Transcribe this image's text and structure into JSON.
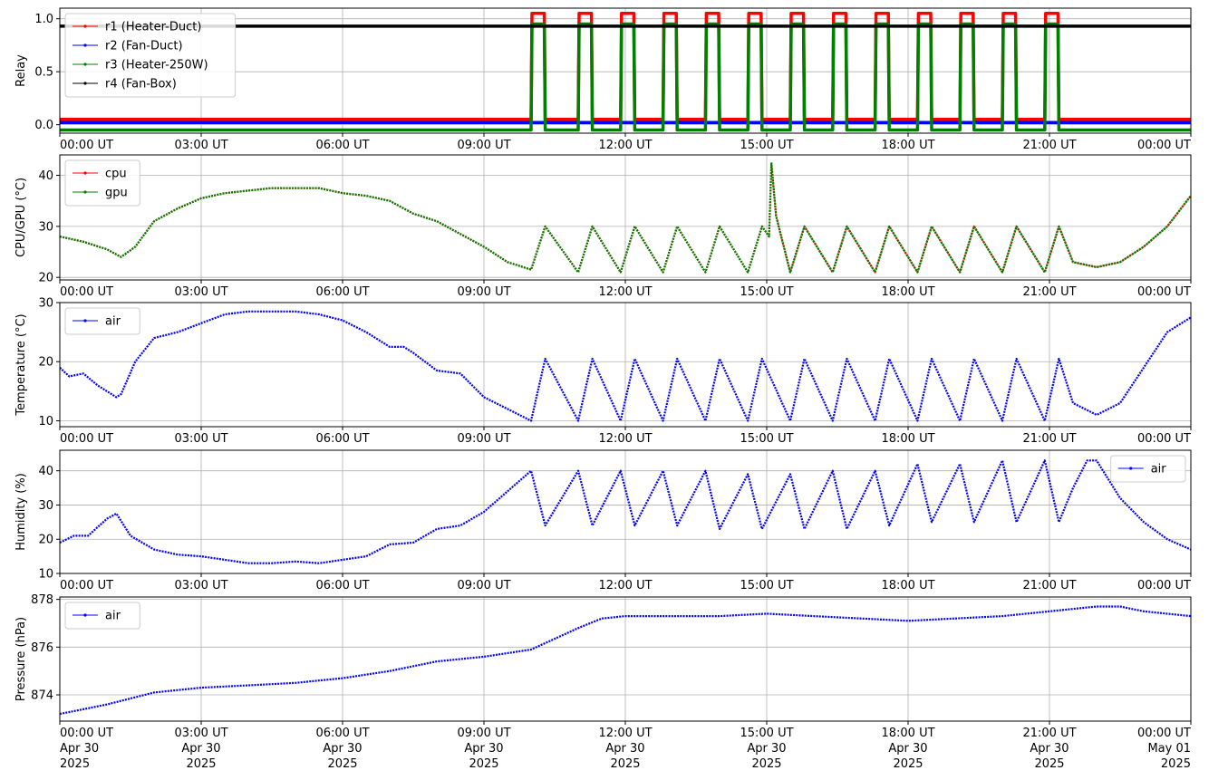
{
  "chart_data": [
    {
      "type": "line",
      "ylabel": "Relay",
      "ylim": [
        -0.08,
        1.1
      ],
      "yticks": [
        "0.0",
        "0.5",
        "1.0"
      ],
      "ytick_values": [
        0,
        0.5,
        1.0
      ],
      "legend_position": "upper-left",
      "grid": true,
      "x_tick_labels": [
        "00:00 UT",
        "03:00 UT",
        "06:00 UT",
        "09:00 UT",
        "12:00 UT",
        "15:00 UT",
        "18:00 UT",
        "21:00 UT",
        "00:00 UT"
      ],
      "series": [
        {
          "name": "r1 (Heater-Duct)",
          "color": "#ff0000",
          "off": 0.05,
          "on": 1.05,
          "on_intervals": [
            [
              10.0,
              10.3
            ],
            [
              11.0,
              11.3
            ],
            [
              11.9,
              12.2
            ],
            [
              12.8,
              13.1
            ],
            [
              13.7,
              14.0
            ],
            [
              14.6,
              14.9
            ],
            [
              15.5,
              15.8
            ],
            [
              16.4,
              16.7
            ],
            [
              17.3,
              17.6
            ],
            [
              18.2,
              18.5
            ],
            [
              19.1,
              19.4
            ],
            [
              20.0,
              20.3
            ],
            [
              20.9,
              21.2
            ]
          ]
        },
        {
          "name": "r2 (Fan-Duct)",
          "color": "#0000ff",
          "off": 0.02,
          "on": 0.02,
          "on_intervals": []
        },
        {
          "name": "r3 (Heater-250W)",
          "color": "#008000",
          "off": -0.05,
          "on": 0.95,
          "on_intervals": [
            [
              10.0,
              10.3
            ],
            [
              11.0,
              11.3
            ],
            [
              11.9,
              12.2
            ],
            [
              12.8,
              13.1
            ],
            [
              13.7,
              14.0
            ],
            [
              14.6,
              14.9
            ],
            [
              15.5,
              15.8
            ],
            [
              16.4,
              16.7
            ],
            [
              17.3,
              17.6
            ],
            [
              18.2,
              18.5
            ],
            [
              19.1,
              19.4
            ],
            [
              20.0,
              20.3
            ],
            [
              20.9,
              21.2
            ]
          ]
        },
        {
          "name": "r4 (Fan-Box)",
          "color": "#000000",
          "off": 0.93,
          "on": 0.93,
          "on_intervals": []
        }
      ]
    },
    {
      "type": "line",
      "ylabel": "CPU/GPU (°C)",
      "ylim": [
        19.5,
        44
      ],
      "yticks": [
        "20",
        "30",
        "40"
      ],
      "ytick_values": [
        20,
        30,
        40
      ],
      "legend_position": "upper-left",
      "grid": true,
      "x_tick_labels": [
        "00:00 UT",
        "03:00 UT",
        "06:00 UT",
        "09:00 UT",
        "12:00 UT",
        "15:00 UT",
        "18:00 UT",
        "21:00 UT",
        "00:00 UT"
      ],
      "series": [
        {
          "name": "cpu",
          "color": "#ff0000",
          "x": [
            0,
            0.5,
            1.0,
            1.3,
            1.6,
            2.0,
            2.5,
            3.0,
            3.5,
            4.0,
            4.5,
            5.0,
            5.5,
            6.0,
            6.5,
            7.0,
            7.5,
            8.0,
            8.5,
            9.0,
            9.5,
            10.0,
            10.3,
            11.0,
            11.3,
            11.9,
            12.2,
            12.8,
            13.1,
            13.7,
            14.0,
            14.6,
            14.9,
            15.05,
            15.1,
            15.2,
            15.5,
            15.8,
            16.4,
            16.7,
            17.3,
            17.6,
            18.2,
            18.5,
            19.1,
            19.4,
            20.0,
            20.3,
            20.9,
            21.2,
            21.5,
            22.0,
            22.5,
            23.0,
            23.5,
            24.0
          ],
          "y": [
            28,
            27,
            25.5,
            24,
            26,
            31,
            33.5,
            35.5,
            36.5,
            37,
            37.5,
            37.5,
            37.5,
            36.5,
            36,
            35,
            32.5,
            31,
            28.5,
            26,
            23,
            21.5,
            30,
            21,
            30,
            21,
            30,
            21,
            30,
            21,
            30,
            21,
            30,
            28,
            42,
            32,
            21,
            30,
            21,
            30,
            21,
            30,
            21,
            30,
            21,
            30,
            21,
            30,
            21,
            30,
            23,
            22,
            23,
            26,
            30,
            36
          ]
        },
        {
          "name": "gpu",
          "color": "#008000",
          "x": [
            0,
            0.5,
            1.0,
            1.3,
            1.6,
            2.0,
            2.5,
            3.0,
            3.5,
            4.0,
            4.5,
            5.0,
            5.5,
            6.0,
            6.5,
            7.0,
            7.5,
            8.0,
            8.5,
            9.0,
            9.5,
            10.0,
            10.3,
            11.0,
            11.3,
            11.9,
            12.2,
            12.8,
            13.1,
            13.7,
            14.0,
            14.6,
            14.9,
            15.05,
            15.1,
            15.2,
            15.5,
            15.8,
            16.4,
            16.7,
            17.3,
            17.6,
            18.2,
            18.5,
            19.1,
            19.4,
            20.0,
            20.3,
            20.9,
            21.2,
            21.5,
            22.0,
            22.5,
            23.0,
            23.5,
            24.0
          ],
          "y": [
            28,
            27,
            25.5,
            24,
            26,
            31,
            33.5,
            35.5,
            36.5,
            37,
            37.5,
            37.5,
            37.5,
            36.5,
            36,
            35,
            32.5,
            31,
            28.5,
            26,
            23,
            21.5,
            30,
            21,
            30,
            21,
            30,
            21,
            30,
            21,
            30,
            21,
            30,
            28,
            42.5,
            32,
            21,
            30,
            21,
            30,
            21,
            30,
            21,
            30,
            21,
            30,
            21,
            30,
            21,
            30,
            23,
            22,
            23,
            26,
            30,
            36
          ]
        }
      ]
    },
    {
      "type": "line",
      "ylabel": "Temperature (°C)",
      "ylim": [
        9,
        30
      ],
      "yticks": [
        "10",
        "20",
        "30"
      ],
      "ytick_values": [
        10,
        20,
        30
      ],
      "legend_position": "upper-left",
      "grid": true,
      "x_tick_labels": [
        "00:00 UT",
        "03:00 UT",
        "06:00 UT",
        "09:00 UT",
        "12:00 UT",
        "15:00 UT",
        "18:00 UT",
        "21:00 UT",
        "00:00 UT"
      ],
      "series": [
        {
          "name": "air",
          "color": "#0000ff",
          "x": [
            0,
            0.2,
            0.5,
            0.8,
            1.0,
            1.2,
            1.3,
            1.6,
            2.0,
            2.5,
            3.0,
            3.5,
            4.0,
            4.5,
            5.0,
            5.5,
            6.0,
            6.5,
            7.0,
            7.3,
            7.5,
            8.0,
            8.5,
            9.0,
            9.5,
            10.0,
            10.3,
            11.0,
            11.3,
            11.9,
            12.2,
            12.8,
            13.1,
            13.7,
            14.0,
            14.6,
            14.9,
            15.5,
            15.8,
            16.4,
            16.7,
            17.3,
            17.6,
            18.2,
            18.5,
            19.1,
            19.4,
            20.0,
            20.3,
            20.9,
            21.2,
            21.5,
            22.0,
            22.5,
            23.0,
            23.5,
            24.0
          ],
          "y": [
            19,
            17.5,
            18,
            16,
            15,
            14,
            14.5,
            20,
            24,
            25,
            26.5,
            28,
            28.5,
            28.5,
            28.5,
            28,
            27,
            25,
            22.5,
            22.5,
            21.5,
            18.5,
            18,
            14,
            12,
            10,
            20.5,
            10,
            20.5,
            10,
            20.5,
            10,
            20.5,
            10,
            20.5,
            10,
            20.5,
            10,
            20.5,
            10,
            20.5,
            10,
            20.5,
            10,
            20.5,
            10,
            20.5,
            10,
            20.5,
            10,
            20.5,
            13,
            11,
            13,
            19,
            25,
            27.5
          ]
        }
      ]
    },
    {
      "type": "line",
      "ylabel": "Humidity (%)",
      "ylim": [
        10,
        46
      ],
      "yticks": [
        "10",
        "20",
        "30",
        "40"
      ],
      "ytick_values": [
        10,
        20,
        30,
        40
      ],
      "legend_position": "upper-right",
      "grid": true,
      "x_tick_labels": [
        "00:00 UT",
        "03:00 UT",
        "06:00 UT",
        "09:00 UT",
        "12:00 UT",
        "15:00 UT",
        "18:00 UT",
        "21:00 UT",
        "00:00 UT"
      ],
      "series": [
        {
          "name": "air",
          "color": "#0000ff",
          "x": [
            0,
            0.3,
            0.6,
            1.0,
            1.2,
            1.5,
            2.0,
            2.5,
            3.0,
            3.5,
            4.0,
            4.5,
            5.0,
            5.5,
            6.0,
            6.5,
            7.0,
            7.5,
            8.0,
            8.5,
            9.0,
            9.5,
            10.0,
            10.3,
            11.0,
            11.3,
            11.9,
            12.2,
            12.8,
            13.1,
            13.7,
            14.0,
            14.6,
            14.9,
            15.5,
            15.8,
            16.4,
            16.7,
            17.3,
            17.6,
            18.2,
            18.5,
            19.1,
            19.4,
            20.0,
            20.3,
            20.9,
            21.2,
            21.5,
            21.8,
            22.0,
            22.5,
            23.0,
            23.5,
            24.0
          ],
          "y": [
            19,
            21,
            21,
            26,
            27.5,
            21,
            17,
            15.5,
            15,
            14,
            13,
            13,
            13.5,
            13,
            14,
            15,
            18.5,
            19,
            23,
            24,
            28,
            34,
            40,
            24,
            40,
            24,
            40,
            24,
            40,
            24,
            40,
            23,
            39,
            23,
            39,
            23,
            40,
            23,
            40,
            24,
            42,
            25,
            42,
            25,
            43,
            25,
            43,
            25,
            35,
            43,
            43,
            32,
            25,
            20,
            17
          ]
        }
      ]
    },
    {
      "type": "line",
      "ylabel": "Pressure (hPa)",
      "ylim": [
        872.9,
        878.1
      ],
      "yticks": [
        "874",
        "876",
        "878"
      ],
      "ytick_values": [
        874,
        876,
        878
      ],
      "legend_position": "upper-left",
      "grid": true,
      "x_tick_labels": [
        "00:00 UT",
        "03:00 UT",
        "06:00 UT",
        "09:00 UT",
        "12:00 UT",
        "15:00 UT",
        "18:00 UT",
        "21:00 UT",
        "00:00 UT"
      ],
      "x_date_labels": [
        "Apr 30",
        "Apr 30",
        "Apr 30",
        "Apr 30",
        "Apr 30",
        "Apr 30",
        "Apr 30",
        "Apr 30",
        "May 01"
      ],
      "x_year_labels": [
        "2025",
        "2025",
        "2025",
        "2025",
        "2025",
        "2025",
        "2025",
        "2025",
        "2025"
      ],
      "series": [
        {
          "name": "air",
          "color": "#0000ff",
          "x": [
            0,
            1,
            2,
            3,
            4,
            5,
            6,
            7,
            8,
            9,
            10,
            11,
            11.5,
            12,
            13,
            14,
            15,
            16,
            17,
            18,
            19,
            20,
            21,
            22,
            22.5,
            23,
            24
          ],
          "y": [
            873.2,
            873.6,
            874.1,
            874.3,
            874.4,
            874.5,
            874.7,
            875,
            875.4,
            875.6,
            875.9,
            876.8,
            877.2,
            877.3,
            877.3,
            877.3,
            877.4,
            877.3,
            877.2,
            877.1,
            877.2,
            877.3,
            877.5,
            877.7,
            877.7,
            877.5,
            877.3
          ]
        }
      ]
    }
  ]
}
